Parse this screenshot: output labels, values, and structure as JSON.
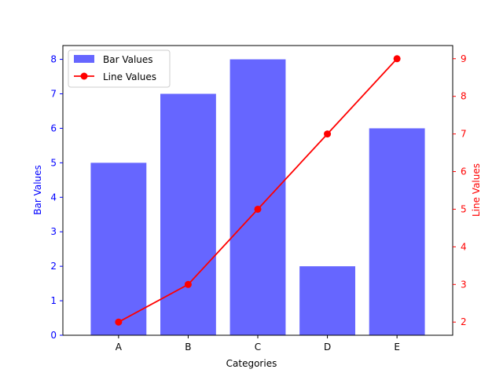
{
  "chart_data": {
    "type": "bar+line",
    "categories": [
      "A",
      "B",
      "C",
      "D",
      "E"
    ],
    "series": [
      {
        "name": "Bar Values",
        "kind": "bar",
        "axis": "left",
        "values": [
          5,
          7,
          8,
          2,
          6
        ],
        "color": "#6666ff"
      },
      {
        "name": "Line Values",
        "kind": "line",
        "axis": "right",
        "values": [
          2,
          3,
          5,
          7,
          9
        ],
        "color": "#ff0000",
        "marker": "circle"
      }
    ],
    "xlabel": "Categories",
    "ylabel_left": "Bar Values",
    "ylabel_right": "Line Values",
    "ylim_left": [
      0,
      8.4
    ],
    "ylim_right": [
      1.65,
      9.35
    ],
    "yticks_left": [
      "0",
      "1",
      "2",
      "3",
      "4",
      "5",
      "6",
      "7",
      "8"
    ],
    "yticks_right": [
      "2",
      "3",
      "4",
      "5",
      "6",
      "7",
      "8",
      "9"
    ],
    "left_axis_color": "#0000ff",
    "right_axis_color": "#ff0000",
    "grid": false,
    "legend_position": "upper-left"
  }
}
